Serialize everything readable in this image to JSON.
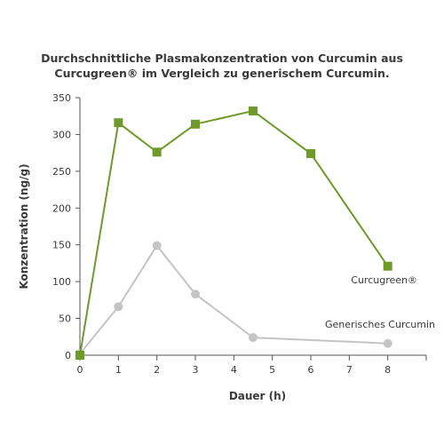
{
  "chart_data": {
    "type": "line",
    "title_lines": [
      "Durchschnittliche Plasmakonzentration von Curcumin aus",
      "Curcugreen® im Vergleich zu generischem Curcumin."
    ],
    "xlabel": "Dauer (h)",
    "ylabel": "Konzentration (ng/g)",
    "xlim": [
      0,
      9
    ],
    "ylim": [
      0,
      350
    ],
    "x_ticks": [
      0,
      1,
      2,
      3,
      4,
      5,
      6,
      7,
      8
    ],
    "y_ticks": [
      0,
      50,
      100,
      150,
      200,
      250,
      300,
      350
    ],
    "grid": false,
    "legend": "inline labels next to series",
    "series": [
      {
        "name": "Curcugreen®",
        "color": "#6d9a2a",
        "marker": "square",
        "x": [
          0,
          1,
          2,
          3,
          4.5,
          6,
          8
        ],
        "y": [
          0,
          316,
          276,
          314,
          332,
          274,
          121
        ]
      },
      {
        "name": "Generisches Curcumin",
        "color": "#c4c4c4",
        "marker": "circle",
        "x": [
          0,
          1,
          2,
          3,
          4.5,
          8
        ],
        "y": [
          2,
          66,
          149,
          83,
          24,
          16
        ]
      }
    ]
  }
}
